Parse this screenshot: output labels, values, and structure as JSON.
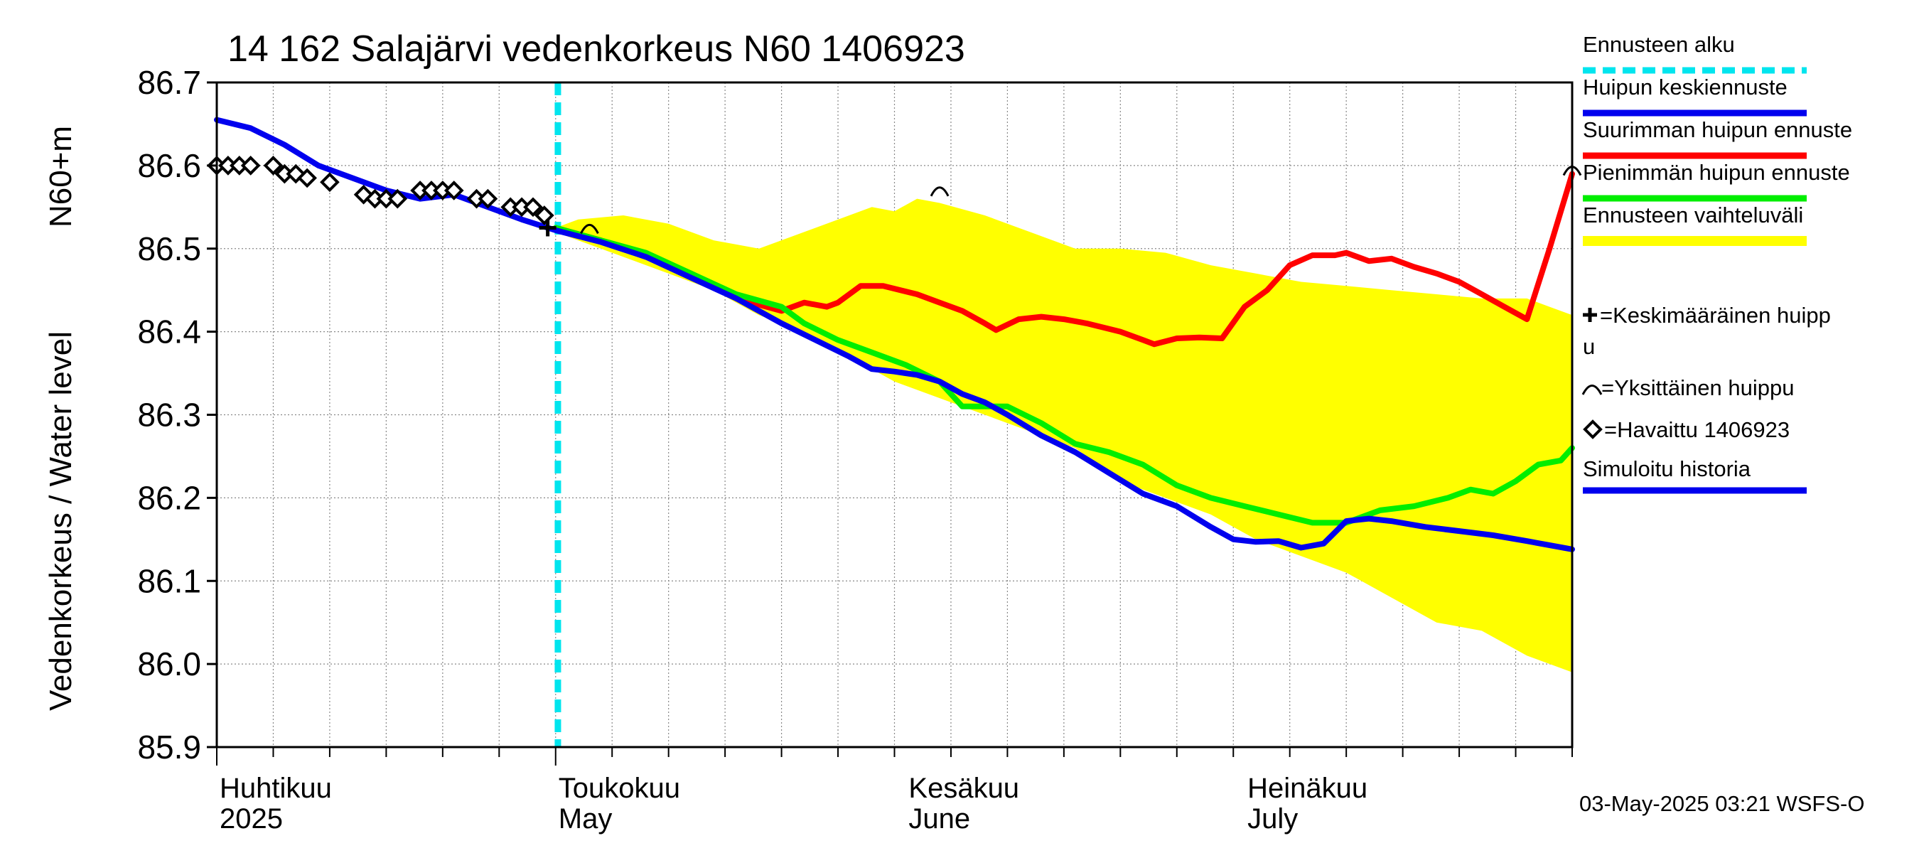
{
  "chart_data": {
    "type": "line",
    "title": "14 162 Salajärvi vedenkorkeus N60 1406923",
    "ylabel_top": "N60+m",
    "ylabel": "Vedenkorkeus / Water level",
    "ylim": [
      85.9,
      86.7
    ],
    "yticks": [
      "86.7",
      "86.6",
      "86.5",
      "86.4",
      "86.3",
      "86.2",
      "86.1",
      "86.0",
      "85.9"
    ],
    "x_range_days": [
      0,
      120
    ],
    "grid": true,
    "month_labels": [
      {
        "fi": "Huhtikuu",
        "en": "2025",
        "day": 0
      },
      {
        "fi": "Toukokuu",
        "en": "May",
        "day": 30
      },
      {
        "fi": "Kesäkuu",
        "en": "June",
        "day": 61
      },
      {
        "fi": "Heinäkuu",
        "en": "July",
        "day": 91
      }
    ],
    "forecast_start_day": 30.2,
    "band": {
      "upper": [
        [
          30,
          86.525
        ],
        [
          32,
          86.535
        ],
        [
          36,
          86.54
        ],
        [
          40,
          86.53
        ],
        [
          44,
          86.51
        ],
        [
          48,
          86.5
        ],
        [
          52,
          86.52
        ],
        [
          56,
          86.54
        ],
        [
          58,
          86.55
        ],
        [
          60,
          86.545
        ],
        [
          62,
          86.56
        ],
        [
          64,
          86.555
        ],
        [
          68,
          86.54
        ],
        [
          72,
          86.52
        ],
        [
          76,
          86.5
        ],
        [
          80,
          86.5
        ],
        [
          84,
          86.495
        ],
        [
          88,
          86.48
        ],
        [
          92,
          86.47
        ],
        [
          96,
          86.46
        ],
        [
          100,
          86.455
        ],
        [
          104,
          86.45
        ],
        [
          108,
          86.445
        ],
        [
          112,
          86.44
        ],
        [
          116,
          86.44
        ],
        [
          118,
          86.43
        ],
        [
          120,
          86.42
        ]
      ],
      "lower": [
        [
          120,
          85.99
        ],
        [
          116,
          86.01
        ],
        [
          112,
          86.04
        ],
        [
          108,
          86.05
        ],
        [
          104,
          86.08
        ],
        [
          100,
          86.11
        ],
        [
          96,
          86.13
        ],
        [
          92,
          86.15
        ],
        [
          88,
          86.18
        ],
        [
          84,
          86.2
        ],
        [
          80,
          86.22
        ],
        [
          76,
          86.26
        ],
        [
          72,
          86.28
        ],
        [
          68,
          86.3
        ],
        [
          64,
          86.32
        ],
        [
          60,
          86.34
        ],
        [
          56,
          86.37
        ],
        [
          52,
          86.4
        ],
        [
          48,
          86.42
        ],
        [
          44,
          86.45
        ],
        [
          40,
          86.47
        ],
        [
          36,
          86.49
        ],
        [
          32,
          86.51
        ],
        [
          30,
          86.52
        ]
      ]
    },
    "series": [
      {
        "name": "Suurimman huipun ennuste",
        "color": "#ff0000",
        "points": [
          [
            30,
            86.525
          ],
          [
            34,
            86.51
          ],
          [
            38,
            86.49
          ],
          [
            42,
            86.47
          ],
          [
            46,
            86.44
          ],
          [
            50,
            86.425
          ],
          [
            52,
            86.435
          ],
          [
            54,
            86.43
          ],
          [
            55,
            86.435
          ],
          [
            57,
            86.455
          ],
          [
            59,
            86.455
          ],
          [
            62,
            86.445
          ],
          [
            64,
            86.435
          ],
          [
            66,
            86.425
          ],
          [
            68,
            86.41
          ],
          [
            69,
            86.402
          ],
          [
            71,
            86.415
          ],
          [
            73,
            86.418
          ],
          [
            75,
            86.415
          ],
          [
            77,
            86.41
          ],
          [
            80,
            86.4
          ],
          [
            82,
            86.39
          ],
          [
            83,
            86.385
          ],
          [
            85,
            86.392
          ],
          [
            87,
            86.393
          ],
          [
            89,
            86.392
          ],
          [
            91,
            86.43
          ],
          [
            93,
            86.45
          ],
          [
            95,
            86.48
          ],
          [
            97,
            86.492
          ],
          [
            99,
            86.492
          ],
          [
            100,
            86.495
          ],
          [
            102,
            86.485
          ],
          [
            104,
            86.488
          ],
          [
            106,
            86.478
          ],
          [
            108,
            86.47
          ],
          [
            110,
            86.46
          ],
          [
            112,
            86.445
          ],
          [
            114,
            86.43
          ],
          [
            116,
            86.415
          ],
          [
            118,
            86.5
          ],
          [
            120,
            86.59
          ]
        ]
      },
      {
        "name": "Pienimmän huipun ennuste",
        "color": "#00ee00",
        "points": [
          [
            30,
            86.525
          ],
          [
            34,
            86.51
          ],
          [
            38,
            86.495
          ],
          [
            42,
            86.47
          ],
          [
            46,
            86.445
          ],
          [
            50,
            86.43
          ],
          [
            52,
            86.41
          ],
          [
            55,
            86.39
          ],
          [
            58,
            86.375
          ],
          [
            61,
            86.36
          ],
          [
            64,
            86.34
          ],
          [
            66,
            86.31
          ],
          [
            68,
            86.31
          ],
          [
            70,
            86.31
          ],
          [
            73,
            86.29
          ],
          [
            76,
            86.265
          ],
          [
            79,
            86.255
          ],
          [
            82,
            86.24
          ],
          [
            85,
            86.215
          ],
          [
            88,
            86.2
          ],
          [
            91,
            86.19
          ],
          [
            94,
            86.18
          ],
          [
            97,
            86.17
          ],
          [
            100,
            86.17
          ],
          [
            103,
            86.185
          ],
          [
            106,
            86.19
          ],
          [
            109,
            86.2
          ],
          [
            111,
            86.21
          ],
          [
            113,
            86.205
          ],
          [
            115,
            86.22
          ],
          [
            117,
            86.24
          ],
          [
            119,
            86.245
          ],
          [
            120,
            86.26
          ]
        ]
      },
      {
        "name": "Huipun keskiennuste",
        "color": "#0000ee",
        "points": [
          [
            0,
            86.655
          ],
          [
            3,
            86.645
          ],
          [
            6,
            86.625
          ],
          [
            9,
            86.6
          ],
          [
            12,
            86.585
          ],
          [
            15,
            86.57
          ],
          [
            18,
            86.56
          ],
          [
            21,
            86.565
          ],
          [
            24,
            86.55
          ],
          [
            27,
            86.535
          ],
          [
            30,
            86.522
          ],
          [
            34,
            86.508
          ],
          [
            38,
            86.49
          ],
          [
            42,
            86.465
          ],
          [
            46,
            86.44
          ],
          [
            50,
            86.41
          ],
          [
            53,
            86.39
          ],
          [
            56,
            86.37
          ],
          [
            58,
            86.355
          ],
          [
            60,
            86.352
          ],
          [
            62,
            86.348
          ],
          [
            64,
            86.34
          ],
          [
            66,
            86.325
          ],
          [
            68,
            86.315
          ],
          [
            70,
            86.3
          ],
          [
            73,
            86.275
          ],
          [
            76,
            86.255
          ],
          [
            79,
            86.23
          ],
          [
            82,
            86.205
          ],
          [
            85,
            86.19
          ],
          [
            88,
            86.165
          ],
          [
            90,
            86.15
          ],
          [
            92,
            86.147
          ],
          [
            94,
            86.148
          ],
          [
            96,
            86.14
          ],
          [
            98,
            86.145
          ],
          [
            100,
            86.172
          ],
          [
            102,
            86.175
          ],
          [
            104,
            86.172
          ],
          [
            107,
            86.165
          ],
          [
            110,
            86.16
          ],
          [
            113,
            86.155
          ],
          [
            116,
            86.148
          ],
          [
            120,
            86.138
          ]
        ]
      }
    ],
    "observed": [
      [
        0,
        86.6
      ],
      [
        1,
        86.6
      ],
      [
        2,
        86.6
      ],
      [
        3,
        86.6
      ],
      [
        5,
        86.6
      ],
      [
        6,
        86.59
      ],
      [
        7,
        86.59
      ],
      [
        8,
        86.585
      ],
      [
        10,
        86.58
      ],
      [
        13,
        86.565
      ],
      [
        14,
        86.56
      ],
      [
        15,
        86.56
      ],
      [
        16,
        86.56
      ],
      [
        18,
        86.57
      ],
      [
        19,
        86.57
      ],
      [
        20,
        86.57
      ],
      [
        21,
        86.57
      ],
      [
        23,
        86.56
      ],
      [
        24,
        86.56
      ],
      [
        26,
        86.55
      ],
      [
        27,
        86.55
      ],
      [
        28,
        86.55
      ],
      [
        29,
        86.54
      ]
    ],
    "mean_peak": [
      29.3,
      86.525
    ],
    "single_peaks": [
      [
        33,
        86.52
      ],
      [
        64,
        86.565
      ],
      [
        120,
        86.59
      ]
    ],
    "legend": [
      {
        "label": "Ennusteen alku",
        "color": "#00e5ee",
        "style": "dashed"
      },
      {
        "label": "Huipun keskiennuste",
        "color": "#0000ee",
        "style": "solid"
      },
      {
        "label": "Suurimman huipun ennuste",
        "color": "#ff0000",
        "style": "solid"
      },
      {
        "label": "Pienimmän huipun ennuste",
        "color": "#00ee00",
        "style": "solid"
      },
      {
        "label": "Ennusteen vaihteluväli",
        "color": "#ffff00",
        "style": "band"
      },
      {
        "label_line1": "=Keskimääräinen huipp",
        "label_line2": "u",
        "symbol": "plus"
      },
      {
        "label": "=Yksittäinen huippu",
        "symbol": "arc"
      },
      {
        "label": "=Havaittu 1406923",
        "symbol": "diamond"
      },
      {
        "label": "Simuloitu historia",
        "color": "#0000ee",
        "style": "solid"
      }
    ],
    "timestamp": "03-May-2025 03:21 WSFS-O"
  }
}
